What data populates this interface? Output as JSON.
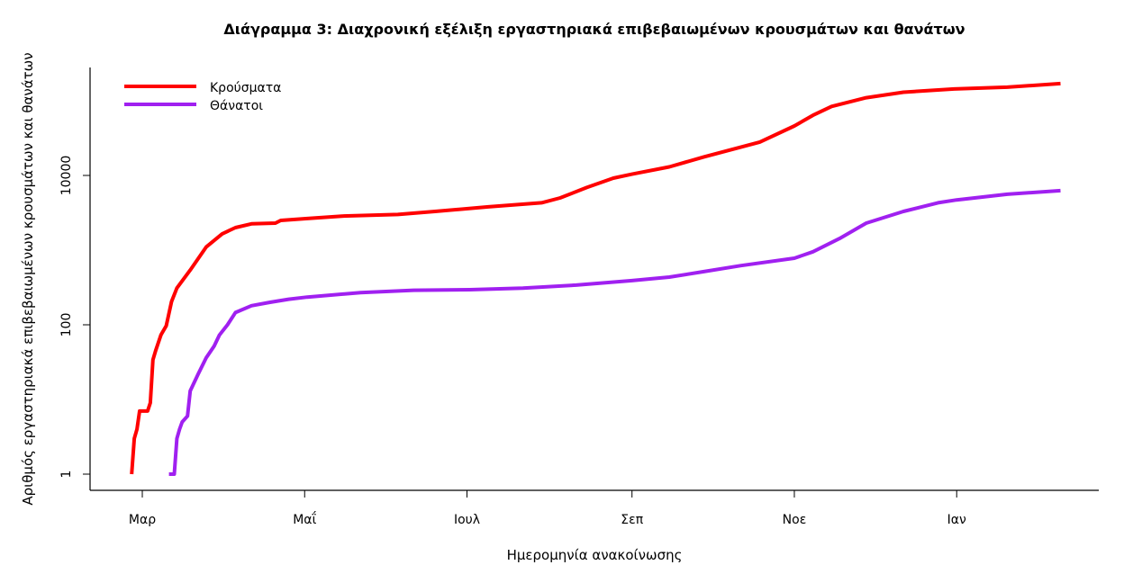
{
  "chart_data": {
    "type": "line",
    "title": "Διάγραμμα 3: Διαχρονική εξέλιξη εργαστηριακά επιβεβαιωμένων κρουσμάτων και θανάτων",
    "xlabel": "Ημερομηνία ανακοίνωσης",
    "ylabel": "Αριθμός εργαστηριακά επιβεβαιωμένων κρουσμάτων και θανάτων",
    "y_scale": "log",
    "yticks": [
      {
        "value": 1,
        "label": "1"
      },
      {
        "value": 100,
        "label": "100"
      },
      {
        "value": 10000,
        "label": "10000"
      }
    ],
    "xticks": [
      {
        "date": "2020-03-01",
        "label": "Μαρ"
      },
      {
        "date": "2020-05-01",
        "label": "Μαΐ"
      },
      {
        "date": "2020-07-01",
        "label": "Ιουλ"
      },
      {
        "date": "2020-09-01",
        "label": "Σεπ"
      },
      {
        "date": "2020-11-01",
        "label": "Νοε"
      },
      {
        "date": "2021-01-01",
        "label": "Ιαν"
      }
    ],
    "grid": false,
    "legend_position": "top-left",
    "series": [
      {
        "name": "Κρούσματα",
        "color": "#ff0000",
        "points": [
          [
            "2020-02-26",
            1
          ],
          [
            "2020-02-27",
            3
          ],
          [
            "2020-02-28",
            4
          ],
          [
            "2020-02-29",
            7
          ],
          [
            "2020-03-03",
            7
          ],
          [
            "2020-03-04",
            9
          ],
          [
            "2020-03-05",
            34
          ],
          [
            "2020-03-06",
            45
          ],
          [
            "2020-03-08",
            73
          ],
          [
            "2020-03-10",
            97
          ],
          [
            "2020-03-12",
            205
          ],
          [
            "2020-03-14",
            310
          ],
          [
            "2020-03-19",
            540
          ],
          [
            "2020-03-25",
            1100
          ],
          [
            "2020-03-31",
            1650
          ],
          [
            "2020-04-05",
            2000
          ],
          [
            "2020-04-11",
            2250
          ],
          [
            "2020-04-20",
            2300
          ],
          [
            "2020-04-22",
            2500
          ],
          [
            "2020-05-02",
            2650
          ],
          [
            "2020-05-15",
            2850
          ],
          [
            "2020-06-05",
            3000
          ],
          [
            "2020-06-19",
            3300
          ],
          [
            "2020-07-09",
            3800
          ],
          [
            "2020-07-29",
            4300
          ],
          [
            "2020-08-05",
            5000
          ],
          [
            "2020-08-15",
            6900
          ],
          [
            "2020-08-25",
            9200
          ],
          [
            "2020-09-01",
            10400
          ],
          [
            "2020-09-15",
            13000
          ],
          [
            "2020-09-28",
            17700
          ],
          [
            "2020-10-19",
            28000
          ],
          [
            "2020-11-01",
            46000
          ],
          [
            "2020-11-08",
            64000
          ],
          [
            "2020-11-15",
            84000
          ],
          [
            "2020-11-28",
            110000
          ],
          [
            "2020-12-12",
            130000
          ],
          [
            "2020-12-31",
            144000
          ],
          [
            "2021-01-20",
            152000
          ],
          [
            "2021-02-09",
            170000
          ]
        ]
      },
      {
        "name": "Θάνατοι",
        "color": "#a020f0",
        "points": [
          [
            "2020-03-11",
            1
          ],
          [
            "2020-03-13",
            1
          ],
          [
            "2020-03-14",
            3
          ],
          [
            "2020-03-15",
            4
          ],
          [
            "2020-03-16",
            5
          ],
          [
            "2020-03-18",
            6
          ],
          [
            "2020-03-19",
            13
          ],
          [
            "2020-03-22",
            22
          ],
          [
            "2020-03-25",
            36
          ],
          [
            "2020-03-28",
            52
          ],
          [
            "2020-03-30",
            73
          ],
          [
            "2020-04-02",
            100
          ],
          [
            "2020-04-05",
            146
          ],
          [
            "2020-04-11",
            180
          ],
          [
            "2020-04-18",
            200
          ],
          [
            "2020-04-25",
            220
          ],
          [
            "2020-05-02",
            235
          ],
          [
            "2020-05-22",
            270
          ],
          [
            "2020-06-11",
            290
          ],
          [
            "2020-07-02",
            295
          ],
          [
            "2020-07-22",
            310
          ],
          [
            "2020-08-11",
            340
          ],
          [
            "2020-09-01",
            390
          ],
          [
            "2020-09-15",
            435
          ],
          [
            "2020-09-28",
            515
          ],
          [
            "2020-10-12",
            620
          ],
          [
            "2020-11-01",
            780
          ],
          [
            "2020-11-08",
            950
          ],
          [
            "2020-11-18",
            1430
          ],
          [
            "2020-11-28",
            2300
          ],
          [
            "2020-12-12",
            3300
          ],
          [
            "2020-12-25",
            4300
          ],
          [
            "2021-01-01",
            4700
          ],
          [
            "2021-01-20",
            5600
          ],
          [
            "2021-02-09",
            6250
          ]
        ]
      }
    ]
  }
}
